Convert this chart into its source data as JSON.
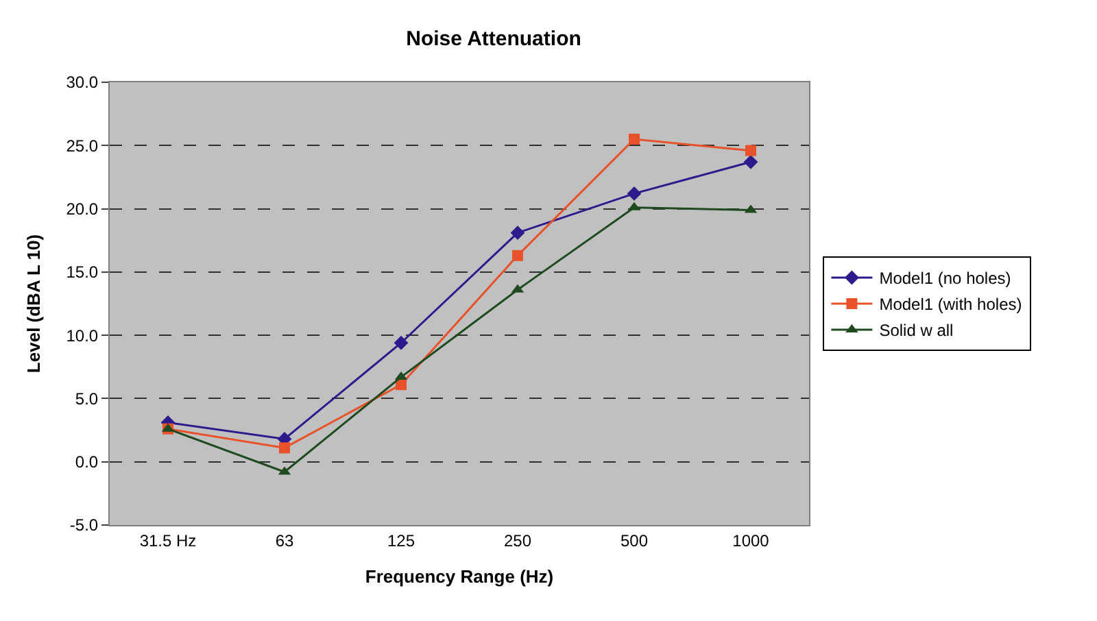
{
  "chart_data": {
    "type": "line",
    "title": "Noise Attenuation",
    "xlabel": "Frequency Range (Hz)",
    "ylabel": "Level (dBA L 10)",
    "categories": [
      "31.5 Hz",
      "63",
      "125",
      "250",
      "500",
      "1000"
    ],
    "series": [
      {
        "name": "Model1 (no holes)",
        "color": "#2e1a8c",
        "marker": "diamond",
        "values": [
          3.1,
          1.8,
          9.4,
          18.1,
          21.2,
          23.7
        ]
      },
      {
        "name": "Model1 (with holes)",
        "color": "#e8522a",
        "marker": "square",
        "values": [
          2.6,
          1.1,
          6.1,
          16.3,
          25.5,
          24.6
        ]
      },
      {
        "name": "Solid w all",
        "color": "#1f4a1f",
        "marker": "triangle",
        "values": [
          2.6,
          -0.8,
          6.7,
          13.6,
          20.1,
          19.9
        ]
      }
    ],
    "ylim": [
      -5,
      30
    ],
    "yticks": [
      {
        "value": -5,
        "label": "-5.0"
      },
      {
        "value": 0,
        "label": "0.0"
      },
      {
        "value": 5,
        "label": "5.0"
      },
      {
        "value": 10,
        "label": "10.0"
      },
      {
        "value": 15,
        "label": "15.0"
      },
      {
        "value": 20,
        "label": "20.0"
      },
      {
        "value": 25,
        "label": "25.0"
      },
      {
        "value": 30,
        "label": "30.0"
      }
    ],
    "grid": "y",
    "legend": "right"
  }
}
